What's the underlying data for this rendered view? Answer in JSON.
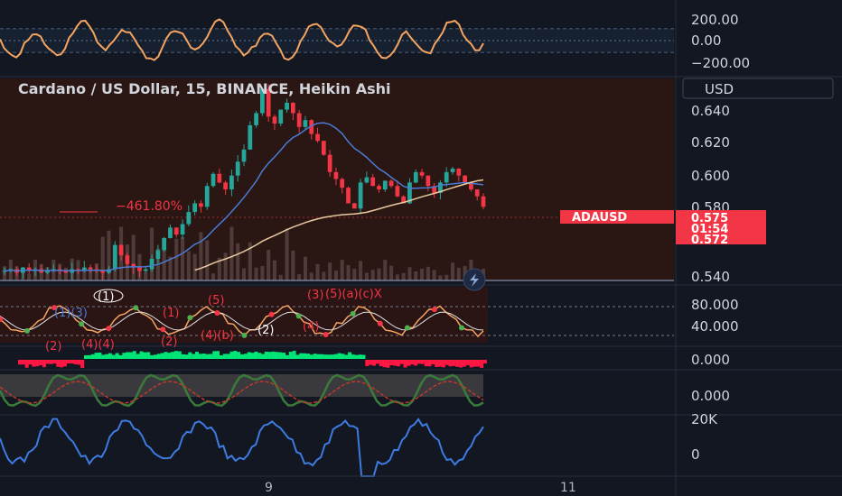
{
  "header": {
    "title": "Cardano / US Dollar, 15, BINANCE, Heikin Ashi",
    "currency": "USD"
  },
  "oscillator_axis": [
    "200.00",
    "0.00",
    "−200.00"
  ],
  "price_axis": [
    "0.640",
    "0.620",
    "0.600",
    "0.580",
    "0.540"
  ],
  "rsi_axis": [
    "80.000",
    "40.000"
  ],
  "osc2_axis": "0.000",
  "osc3_axis": "0.000",
  "volume_axis": [
    "20K",
    "0"
  ],
  "price_tag": {
    "symbol": "ADAUSD",
    "price": "0.575",
    "countdown": "01:54",
    "ma_value": "0.572"
  },
  "annotation": "−461.80%",
  "x_labels": [
    "9",
    "11"
  ],
  "wave_labels": {
    "p1": "(1)",
    "p2": "(2)",
    "p3": "(3)",
    "p4": "(4)",
    "p5": "(5)",
    "a": "(a)",
    "b": "(b)",
    "c": "(c)",
    "x": "X",
    "cluster_top": "(5)(a)(c)X",
    "cluster_left": "(1)(3)",
    "cluster_bottom": "(4)(4)",
    "cluster_bottom2": "(4)(b)"
  },
  "colors": {
    "background": "#131722",
    "price_panel_bg": "#2a1612",
    "bull": "#26a69a",
    "bear": "#f23645",
    "ma_blue": "#4a7bd4",
    "ma_cream": "#e8c9a0",
    "osc_orange": "#f4a460",
    "volume_line": "#3d7be0"
  },
  "chart_data": {
    "type": "candlestick",
    "title": "Cardano / US Dollar, 15, BINANCE, Heikin Ashi",
    "ylim": [
      0.535,
      0.652
    ],
    "x_ticks": [
      "9",
      "11"
    ],
    "last_price": 0.575,
    "ma_value": 0.572,
    "series_close": [
      0.541,
      0.542,
      0.54,
      0.543,
      0.541,
      0.542,
      0.54,
      0.541,
      0.542,
      0.541,
      0.54,
      0.542,
      0.541,
      0.543,
      0.542,
      0.541,
      0.54,
      0.542,
      0.556,
      0.55,
      0.545,
      0.543,
      0.541,
      0.542,
      0.548,
      0.553,
      0.56,
      0.566,
      0.562,
      0.568,
      0.575,
      0.58,
      0.578,
      0.59,
      0.597,
      0.592,
      0.588,
      0.596,
      0.604,
      0.611,
      0.625,
      0.632,
      0.646,
      0.63,
      0.626,
      0.634,
      0.638,
      0.632,
      0.624,
      0.628,
      0.62,
      0.616,
      0.608,
      0.598,
      0.594,
      0.589,
      0.58,
      0.577,
      0.592,
      0.595,
      0.59,
      0.588,
      0.593,
      0.59,
      0.584,
      0.58,
      0.592,
      0.598,
      0.596,
      0.59,
      0.586,
      0.592,
      0.598,
      0.6,
      0.596,
      0.592,
      0.588,
      0.584,
      0.578
    ]
  }
}
